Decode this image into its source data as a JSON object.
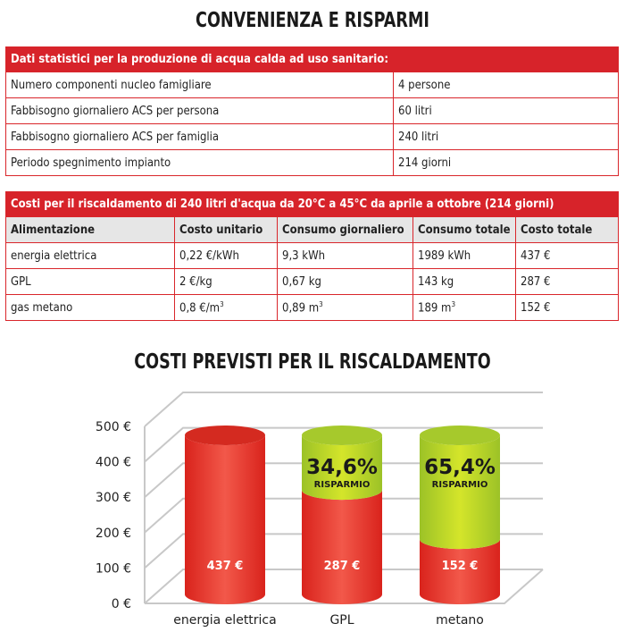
{
  "title": "CONVENIENZA E RISPARMI",
  "table1": {
    "header": "Dati statistici per la produzione di acqua calda ad uso sanitario:",
    "rows": [
      {
        "label": "Numero componenti nucleo famigliare",
        "value": "4 persone"
      },
      {
        "label": "Fabbisogno giornaliero ACS per persona",
        "value": "60 litri"
      },
      {
        "label": "Fabbisogno giornaliero ACS per famiglia",
        "value": "240 litri"
      },
      {
        "label": "Periodo spegnimento impianto",
        "value": "214 giorni"
      }
    ]
  },
  "table2": {
    "header": "Costi per il riscaldamento di 240 litri d'acqua da 20°C a 45°C da aprile a ottobre (214 giorni)",
    "columns": [
      "Alimentazione",
      "Costo unitario",
      "Consumo giornaliero",
      "Consumo totale",
      "Costo totale"
    ],
    "rows": [
      {
        "c0": "energia elettrica",
        "c1": "0,22 €/kWh",
        "c2": "9,3 kWh",
        "c3": "1989 kWh",
        "c4": "437 €"
      },
      {
        "c0": "GPL",
        "c1": "2 €/kg",
        "c2": "0,67 kg",
        "c3": "143 kg",
        "c4": "287 €"
      },
      {
        "c0": "gas metano",
        "c1": "0,8 €/m",
        "c2": "0,89 m",
        "c3": "189 m",
        "c4": "152 €"
      }
    ],
    "superscript": "3"
  },
  "chart_title": "COSTI PREVISTI PER IL RISCALDAMENTO",
  "chart_data": {
    "type": "bar",
    "categories": [
      "energia elettrica",
      "GPL",
      "metano"
    ],
    "series": [
      {
        "values": [
          437,
          287,
          152
        ],
        "color": "#e8382a"
      },
      {
        "values": [
          0,
          150,
          285
        ],
        "color": "#a8cc2a"
      }
    ],
    "data_labels": [
      "437 €",
      "287 €",
      "152 €"
    ],
    "savings": [
      null,
      {
        "percent": "34,6%",
        "label": "RISPARMIO"
      },
      {
        "percent": "65,4%",
        "label": "RISPARMIO"
      }
    ],
    "yticks": [
      "0 €",
      "100 €",
      "200 €",
      "300 €",
      "400 €",
      "500 €"
    ],
    "ylim": [
      0,
      500
    ],
    "grid": true,
    "style": "3d-cylinders"
  }
}
